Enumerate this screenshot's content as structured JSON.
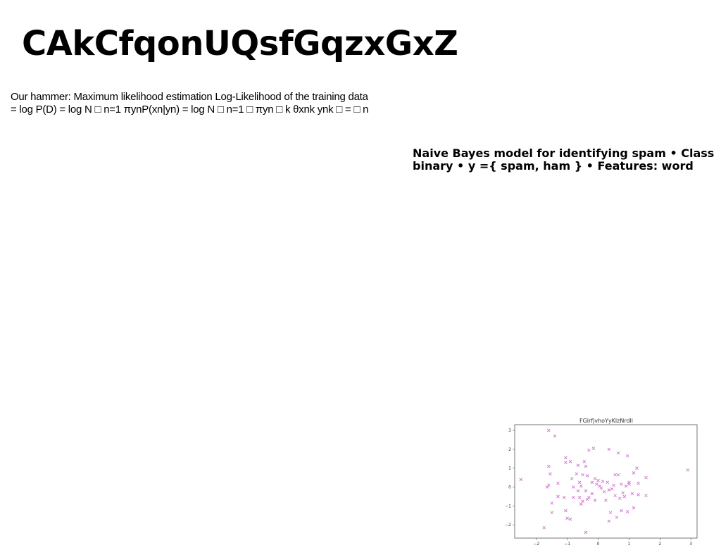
{
  "slide": {
    "title": "CAkCfqonUQsfGqzxGxZ",
    "paragraph_lines": [
      "Our hammer: Maximum likelihood estimation Log-Likelihood of the training data",
      "= log P(D) = log N □ n=1 πynP(xn|yn) = log N □ n=1 □ πyn □ k θxnk ynk □ = □ n"
    ],
    "callout_lines": [
      "Naive Bayes model for identifying spam • Class",
      "binary • y ={ spam, ham } • Features: word"
    ]
  },
  "chart_data": {
    "type": "scatter",
    "title": "FGlrfjvhoYyKlzNrdll",
    "xlabel": "",
    "ylabel": "",
    "xlim": [
      -2.7,
      3.2
    ],
    "ylim": [
      -2.7,
      3.3
    ],
    "xticks": [
      -2,
      -1,
      0,
      1,
      2,
      3
    ],
    "yticks": [
      -2,
      -1,
      0,
      1,
      2,
      3
    ],
    "grid": false,
    "marker": "x",
    "color": "#cc66cc",
    "points": [
      [
        -2.5,
        0.4
      ],
      [
        -1.6,
        3.0
      ],
      [
        -1.4,
        2.7
      ],
      [
        -1.6,
        1.1
      ],
      [
        -1.55,
        0.7
      ],
      [
        -1.6,
        0.1
      ],
      [
        -1.65,
        0.0
      ],
      [
        -1.3,
        0.2
      ],
      [
        -1.5,
        -0.85
      ],
      [
        -1.5,
        -1.35
      ],
      [
        -1.75,
        -2.15
      ],
      [
        -1.1,
        -0.55
      ],
      [
        -1.3,
        -0.5
      ],
      [
        -1.05,
        1.55
      ],
      [
        -1.05,
        1.3
      ],
      [
        -0.85,
        0.45
      ],
      [
        -0.9,
        1.35
      ],
      [
        -0.65,
        1.15
      ],
      [
        -0.45,
        1.35
      ],
      [
        -0.4,
        1.1
      ],
      [
        -0.7,
        0.7
      ],
      [
        -0.5,
        0.65
      ],
      [
        -0.35,
        0.6
      ],
      [
        -0.6,
        0.25
      ],
      [
        -0.8,
        0.0
      ],
      [
        -0.55,
        0.05
      ],
      [
        -0.65,
        -0.2
      ],
      [
        -0.4,
        -0.2
      ],
      [
        -0.3,
        -0.55
      ],
      [
        -0.5,
        -0.75
      ],
      [
        -0.55,
        -0.9
      ],
      [
        -0.35,
        -0.65
      ],
      [
        -0.6,
        -0.55
      ],
      [
        -0.8,
        -0.55
      ],
      [
        -1.05,
        -1.25
      ],
      [
        -1.0,
        -1.65
      ],
      [
        -0.9,
        -1.7
      ],
      [
        -0.4,
        -2.4
      ],
      [
        -0.3,
        1.95
      ],
      [
        -0.15,
        2.05
      ],
      [
        0.35,
        2.0
      ],
      [
        0.65,
        1.8
      ],
      [
        0.95,
        1.65
      ],
      [
        -0.1,
        0.45
      ],
      [
        0.0,
        0.35
      ],
      [
        0.15,
        0.3
      ],
      [
        0.3,
        0.25
      ],
      [
        -0.05,
        0.15
      ],
      [
        0.05,
        0.05
      ],
      [
        0.1,
        -0.05
      ],
      [
        0.35,
        -0.15
      ],
      [
        0.45,
        -0.1
      ],
      [
        0.2,
        -0.25
      ],
      [
        -0.2,
        -0.35
      ],
      [
        -0.1,
        -0.7
      ],
      [
        0.25,
        -0.7
      ],
      [
        0.55,
        -0.45
      ],
      [
        0.7,
        -0.6
      ],
      [
        0.8,
        -0.3
      ],
      [
        0.85,
        -0.5
      ],
      [
        0.65,
        0.65
      ],
      [
        0.55,
        0.65
      ],
      [
        0.75,
        0.15
      ],
      [
        0.9,
        0.05
      ],
      [
        1.0,
        0.15
      ],
      [
        1.0,
        0.25
      ],
      [
        1.15,
        0.75
      ],
      [
        1.25,
        1.0
      ],
      [
        1.3,
        0.2
      ],
      [
        1.55,
        0.5
      ],
      [
        1.1,
        -0.35
      ],
      [
        1.3,
        -0.4
      ],
      [
        1.55,
        -0.45
      ],
      [
        1.15,
        -1.1
      ],
      [
        0.95,
        -1.3
      ],
      [
        0.75,
        -1.25
      ],
      [
        0.6,
        -1.6
      ],
      [
        0.4,
        -1.35
      ],
      [
        0.35,
        -1.8
      ],
      [
        2.9,
        0.9
      ],
      [
        -0.2,
        0.25
      ],
      [
        0.5,
        0.1
      ]
    ]
  }
}
